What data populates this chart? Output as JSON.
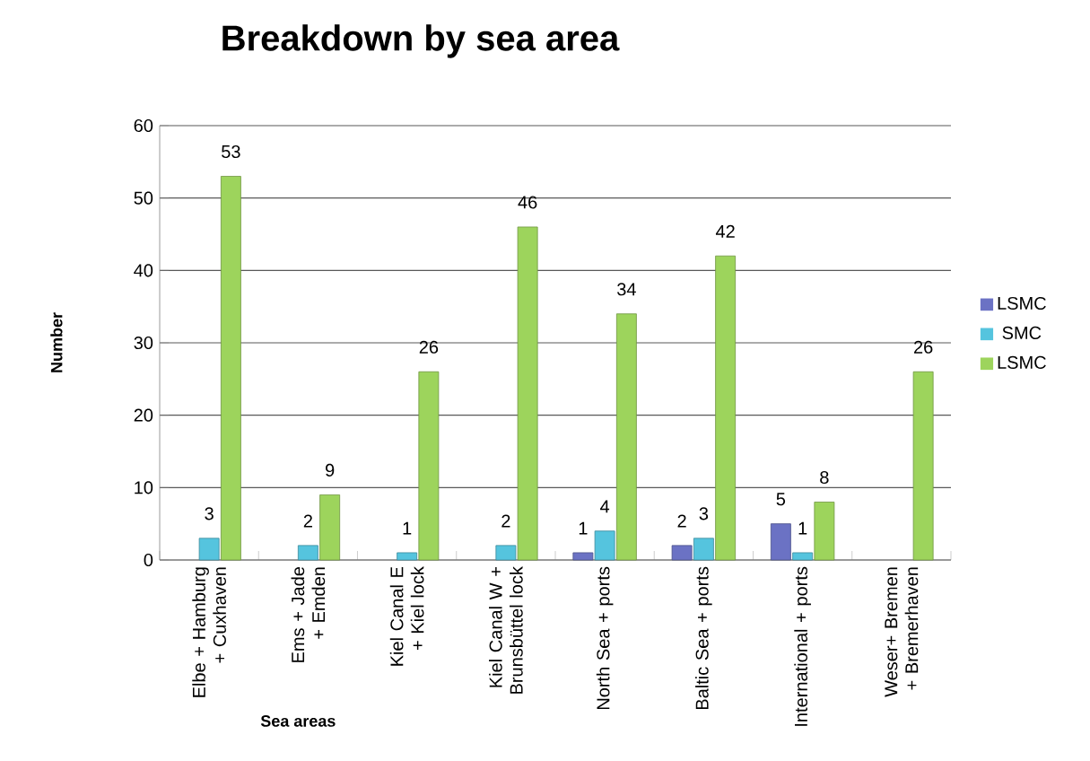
{
  "chart_data": {
    "type": "bar",
    "title": "Breakdown by sea area",
    "xlabel": "Sea areas",
    "ylabel": "Number",
    "categories": [
      "Elbe + Hamburg + Cuxhaven",
      "Ems + Jade + Emden",
      "Kiel Canal E + Kiel lock",
      "Kiel Canal W + Brunsbüttel lock",
      "North Sea + ports",
      "Baltic Sea + ports",
      "International + ports",
      "Weser+ Bremen + Bremerhaven"
    ],
    "series": [
      {
        "name": "LSMC",
        "color": "#6b72c4",
        "values": [
          null,
          null,
          null,
          null,
          1,
          2,
          5,
          null
        ]
      },
      {
        "name": "SMC",
        "color": "#55c4de",
        "values": [
          3,
          2,
          1,
          2,
          4,
          3,
          1,
          null
        ]
      },
      {
        "name": "LSMC",
        "color": "#9dd45c",
        "values": [
          53,
          9,
          26,
          46,
          34,
          42,
          8,
          26
        ]
      }
    ],
    "ylim": [
      0,
      60
    ],
    "yticks": [
      0,
      10,
      20,
      30,
      40,
      50,
      60
    ],
    "grid": "y",
    "legend": "right",
    "data_labels": true
  }
}
